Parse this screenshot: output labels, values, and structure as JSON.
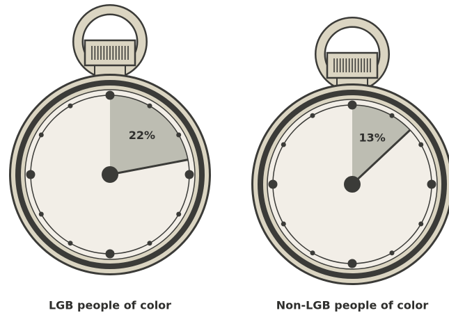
{
  "chart_data": [
    {
      "type": "pie",
      "title": "LGB people of color",
      "values": [
        22
      ],
      "value_labels": [
        "22%"
      ],
      "color": "#bdbdb2"
    },
    {
      "type": "pie",
      "title": "Non-LGB people of color",
      "values": [
        13
      ],
      "value_labels": [
        "13%"
      ],
      "color": "#bdbdb2"
    }
  ]
}
